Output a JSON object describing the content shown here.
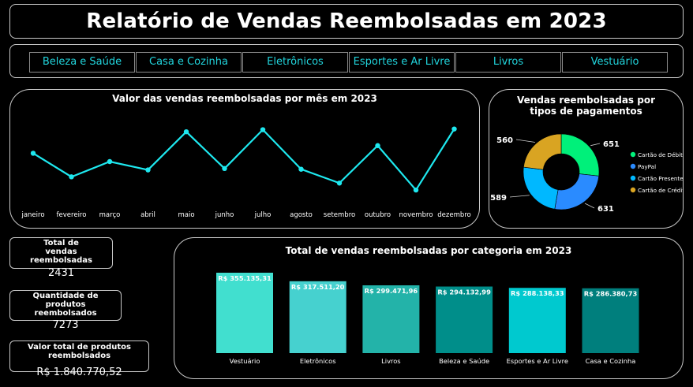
{
  "title": "Relatório de Vendas Reembolsadas em 2023",
  "tabs": [
    {
      "label": "Beleza e Saúde"
    },
    {
      "label": "Casa e Cozinha"
    },
    {
      "label": "Eletrônicos"
    },
    {
      "label": "Esportes e Ar Livre"
    },
    {
      "label": "Livros"
    },
    {
      "label": "Vestuário"
    }
  ],
  "kpis": {
    "total_sales_label": "Total de vendas reembolsadas",
    "total_sales_value": "2431",
    "qty_label": "Quantidade de produtos reembolsados",
    "qty_value": "7273",
    "total_value_label": "Valor total de produtos reembolsados",
    "total_value_value": "R$ 1.840.770,52"
  },
  "colors": {
    "accent": "#21d4dc",
    "line": "#1ee8ef",
    "donut": [
      "#00f07a",
      "#2a8bff",
      "#00b8ff",
      "#d9a422"
    ],
    "bars": [
      "#41dfcf",
      "#46d1cf",
      "#23b3a9",
      "#008e8a",
      "#00c9cf",
      "#007f7d"
    ]
  },
  "chart_data": [
    {
      "type": "line",
      "title": "Valor das vendas reembolsadas por mês em 2023",
      "categories": [
        "janeiro",
        "fevereiro",
        "março",
        "abril",
        "maio",
        "junho",
        "julho",
        "agosto",
        "setembro",
        "outubro",
        "novembro",
        "dezembro"
      ],
      "values": [
        0.62,
        0.28,
        0.5,
        0.38,
        0.93,
        0.4,
        0.96,
        0.39,
        0.19,
        0.73,
        0.09,
        0.97
      ]
    },
    {
      "type": "pie",
      "title": "Vendas reembolsadas por tipos de pagamentos",
      "categories": [
        "Cartão de Débito",
        "PayPal",
        "Cartão Presente",
        "Cartão de Crédito"
      ],
      "values": [
        651,
        631,
        589,
        560
      ],
      "labels": [
        "651",
        "631",
        "589",
        "560"
      ]
    },
    {
      "type": "bar",
      "title": "Total de vendas reembolsadas por categoria em 2023",
      "categories": [
        "Vestuário",
        "Eletrônicos",
        "Livros",
        "Beleza e Saúde",
        "Esportes e Ar Livre",
        "Casa e Cozinha"
      ],
      "values": [
        355135.31,
        317511.2,
        299471.96,
        294132.99,
        288138.33,
        286380.73
      ],
      "labels": [
        "R$ 355.135,31",
        "R$ 317.511,20",
        "R$ 299.471,96",
        "R$ 294.132,99",
        "R$ 288.138,33",
        "R$ 286.380,73"
      ]
    }
  ]
}
